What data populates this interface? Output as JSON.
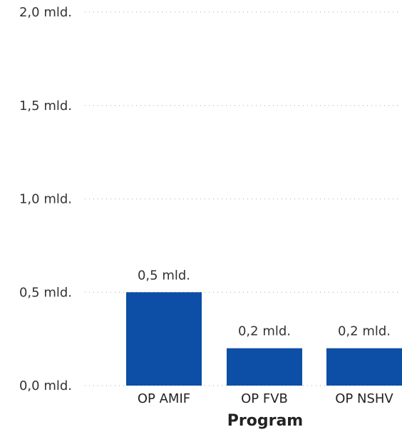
{
  "chart_data": {
    "type": "bar",
    "categories": [
      "OP AMIF",
      "OP FVB",
      "OP NSHV"
    ],
    "values": [
      0.5,
      0.2,
      0.2
    ],
    "data_labels": [
      "0,5 mld.",
      "0,2 mld.",
      "0,2 mld."
    ],
    "y_ticks": [
      {
        "value": 0.0,
        "label": "0,0 mld."
      },
      {
        "value": 0.5,
        "label": "0,5 mld."
      },
      {
        "value": 1.0,
        "label": "1,0 mld."
      },
      {
        "value": 1.5,
        "label": "1,5 mld."
      },
      {
        "value": 2.0,
        "label": "2,0 mld."
      }
    ],
    "xlabel": "Program",
    "ylabel": "",
    "ylim": [
      0,
      2.0
    ],
    "grid": true,
    "bar_color": "#0d4ea6"
  }
}
